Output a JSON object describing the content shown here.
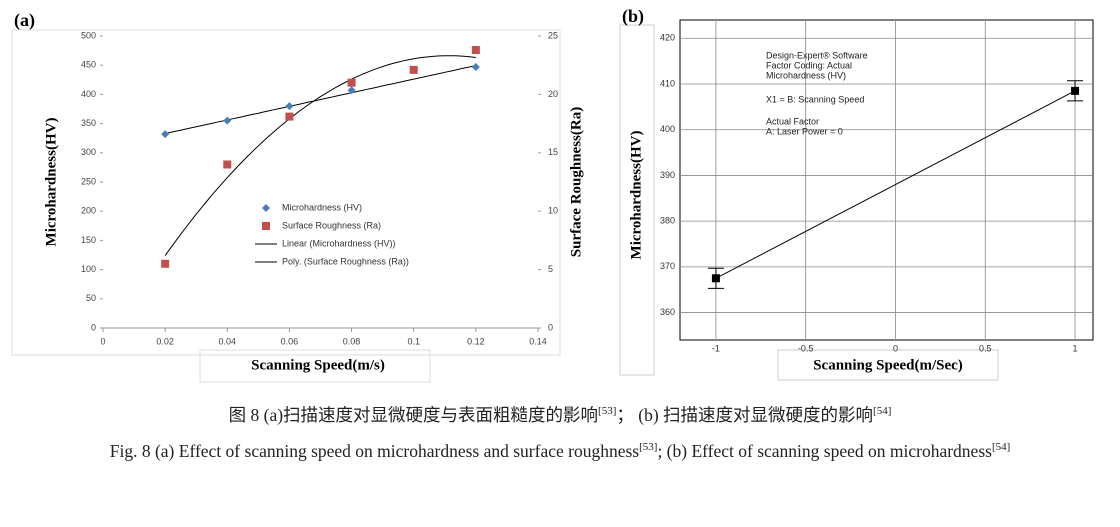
{
  "chart_data": [
    {
      "type": "scatter",
      "panel": "(a)",
      "x_label": "Scanning Speed(m/s)",
      "y_label": "Microhardness(HV)",
      "y2_label": "Surface Roughness(Ra)",
      "xlim": [
        0,
        0.14
      ],
      "xticks": [
        0,
        0.02,
        0.04,
        0.06,
        0.08,
        0.1,
        0.12,
        0.14
      ],
      "ylim": [
        0,
        500
      ],
      "yticks": [
        0,
        50,
        100,
        150,
        200,
        250,
        300,
        350,
        400,
        450,
        500
      ],
      "y2lim": [
        0,
        25
      ],
      "y2ticks": [
        0,
        5,
        10,
        15,
        20,
        25
      ],
      "series": [
        {
          "name": "Microhardness (HV)",
          "color": "#4a7ebb",
          "marker": "diamond",
          "x": [
            0.02,
            0.04,
            0.06,
            0.08,
            0.12
          ],
          "values": [
            332,
            355,
            380,
            407,
            447
          ],
          "trendline": {
            "name": "Linear (Microhardness (HV))",
            "fit": "linear"
          }
        },
        {
          "name": "Surface Roughness (Ra)",
          "color": "#c0504d",
          "marker": "square",
          "axis": "y2",
          "x": [
            0.02,
            0.04,
            0.06,
            0.08,
            0.1,
            0.12
          ],
          "values": [
            5.5,
            14,
            18.1,
            21,
            22.1,
            23.8
          ],
          "trendline": {
            "name": "Poly. (Surface Roughness (Ra))",
            "fit": "quadratic"
          }
        }
      ]
    },
    {
      "type": "line",
      "panel": "(b)",
      "x_label": "Scanning Speed(m/Sec)",
      "y_label": "Microhardness(HV)",
      "xlim": [
        -1.2,
        1.1
      ],
      "xticks": [
        -1,
        -0.5,
        0,
        0.5,
        1
      ],
      "ylim": [
        354,
        424
      ],
      "yticks": [
        360,
        370,
        380,
        390,
        400,
        410,
        420
      ],
      "grid": true,
      "x": [
        -1,
        1
      ],
      "values": [
        367.5,
        408.5
      ],
      "errors": [
        2.2,
        2.2
      ],
      "color": "#000000",
      "annotations": [
        "Design-Expert® Software",
        "Factor Coding: Actual",
        "Microhardness (HV)",
        "X1 = B: Scanning Speed",
        "Actual Factor",
        "A: Laser Power = 0"
      ]
    }
  ],
  "caption": {
    "zh": {
      "part_a": "图 8 (a)扫描速度对显微硬度与表面粗糙度的影响",
      "ref_a": "[53]",
      "part_b": "； (b) 扫描速度对显微硬度的影响",
      "ref_b": "[54]"
    },
    "en": {
      "part_a": "Fig. 8 (a) Effect of scanning speed on microhardness and surface roughness",
      "ref_a": "[53]",
      "part_b": "; (b) Effect of scanning speed on microhardness",
      "ref_b": "[54]"
    }
  }
}
